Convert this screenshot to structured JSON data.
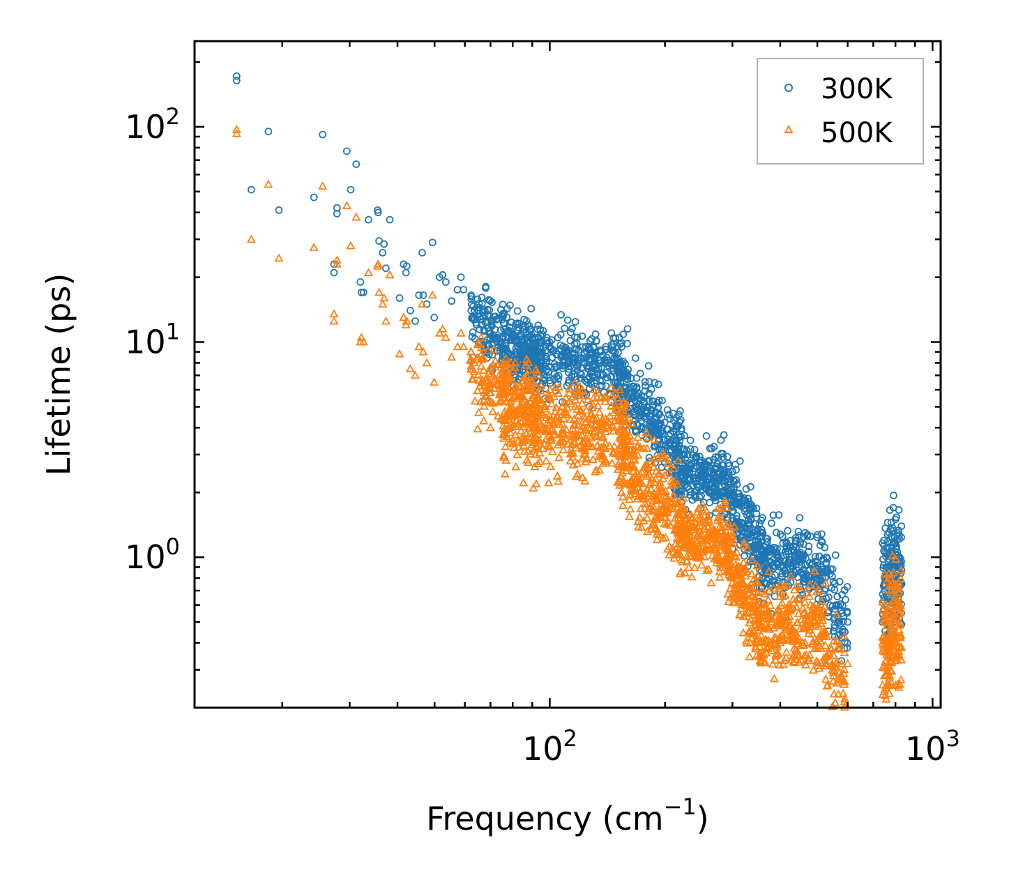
{
  "chart_data": {
    "type": "scatter",
    "title": "",
    "xlabel": "Frequency (cm",
    "xlabel_sup": "−1",
    "xlabel_suffix": ")",
    "ylabel": "Lifetime (ps)",
    "xscale": "log",
    "yscale": "log",
    "xlim": [
      11.8,
      1050
    ],
    "ylim": [
      0.2,
      250
    ],
    "x_ticks": [
      {
        "value": 100,
        "base": "10",
        "exp": "2"
      },
      {
        "value": 1000,
        "base": "10",
        "exp": "3"
      }
    ],
    "y_ticks": [
      {
        "value": 1,
        "base": "10",
        "exp": "0"
      },
      {
        "value": 10,
        "base": "10",
        "exp": "1"
      },
      {
        "value": 100,
        "base": "10",
        "exp": "2"
      }
    ],
    "legend_position": "top-right",
    "series": [
      {
        "name": "300K",
        "color": "#1f77b4",
        "marker": "circle",
        "points": [
          [
            15.2,
            164
          ],
          [
            15.2,
            172
          ],
          [
            16.6,
            51
          ],
          [
            18.4,
            95
          ],
          [
            19.6,
            41
          ],
          [
            24.2,
            47
          ],
          [
            25.5,
            92
          ],
          [
            27.3,
            23
          ],
          [
            27.3,
            21
          ],
          [
            27.8,
            42
          ],
          [
            27.8,
            39.5
          ],
          [
            29.5,
            77
          ],
          [
            30.2,
            51
          ],
          [
            31.2,
            67
          ],
          [
            32,
            19
          ],
          [
            32.2,
            17
          ],
          [
            32.6,
            17
          ],
          [
            33.6,
            37
          ],
          [
            35.5,
            41
          ],
          [
            35.6,
            40
          ],
          [
            35.8,
            29.5
          ],
          [
            36.6,
            26
          ],
          [
            36.9,
            28.5
          ],
          [
            37.3,
            22
          ],
          [
            38.2,
            37
          ],
          [
            40.5,
            16
          ],
          [
            41.5,
            23
          ],
          [
            42.1,
            21
          ],
          [
            42.3,
            22.5
          ],
          [
            43.2,
            14
          ],
          [
            44.5,
            12.5
          ],
          [
            45.5,
            16.5
          ],
          [
            46.4,
            26
          ],
          [
            46.7,
            16.5
          ],
          [
            47.7,
            15
          ],
          [
            49.4,
            29
          ],
          [
            49.9,
            13
          ],
          [
            51.5,
            20
          ],
          [
            52.5,
            20.5
          ],
          [
            53.5,
            19
          ],
          [
            55.4,
            15.5
          ],
          [
            57.4,
            17.5
          ],
          [
            58.6,
            20
          ],
          [
            59.5,
            17.5
          ],
          [
            62.3,
            16.5
          ],
          [
            64.7,
            15.8
          ],
          [
            66.3,
            12
          ],
          [
            70,
            11
          ],
          [
            73,
            10.5
          ],
          [
            80,
            10.5
          ],
          [
            95,
            10
          ],
          [
            100,
            9.5
          ],
          [
            105,
            10.5
          ],
          [
            110,
            9
          ],
          [
            118,
            10.5
          ],
          [
            130,
            9.5
          ],
          [
            140,
            9.5
          ],
          [
            148,
            9
          ],
          [
            160,
            7
          ],
          [
            170,
            5.8
          ],
          [
            176,
            5.3
          ],
          [
            180,
            5
          ],
          [
            190,
            4
          ],
          [
            198,
            3.5
          ],
          [
            205,
            3.3
          ],
          [
            240,
            2.9
          ],
          [
            265,
            3.2
          ],
          [
            280,
            3.5
          ],
          [
            285,
            3.7
          ],
          [
            300,
            2.5
          ],
          [
            315,
            1.75
          ],
          [
            330,
            1.6
          ],
          [
            345,
            1.2
          ],
          [
            370,
            1.05
          ],
          [
            390,
            1.05
          ],
          [
            420,
            0.95
          ],
          [
            460,
            1.15
          ],
          [
            480,
            1.25
          ],
          [
            500,
            0.95
          ],
          [
            520,
            0.85
          ],
          [
            545,
            0.72
          ],
          [
            560,
            0.6
          ],
          [
            580,
            0.55
          ],
          [
            600,
            0.5
          ],
          [
            590,
            0.45
          ],
          [
            740,
            0.5
          ],
          [
            750,
            0.8
          ],
          [
            760,
            1.05
          ],
          [
            770,
            1.3
          ],
          [
            780,
            1.45
          ],
          [
            790,
            1.7
          ],
          [
            800,
            1.5
          ],
          [
            810,
            1.3
          ],
          [
            820,
            1.0
          ],
          [
            830,
            0.75
          ]
        ],
        "clouds": [
          {
            "x": [
              62,
              95
            ],
            "ylog_center": [
              12.5,
              8.5
            ],
            "spread": 0.09,
            "n": 220
          },
          {
            "x": [
              75,
              160
            ],
            "ylog_center": [
              8.6,
              7.8
            ],
            "spread": 0.08,
            "n": 420
          },
          {
            "x": [
              150,
              225
            ],
            "ylog_center": [
              6.5,
              2.8
            ],
            "spread": 0.09,
            "n": 260
          },
          {
            "x": [
              210,
              295
            ],
            "ylog_center": [
              2.5,
              2.2
            ],
            "spread": 0.07,
            "n": 240
          },
          {
            "x": [
              290,
              360
            ],
            "ylog_center": [
              2.0,
              1.05
            ],
            "spread": 0.09,
            "n": 180
          },
          {
            "x": [
              350,
              530
            ],
            "ylog_center": [
              0.95,
              0.9
            ],
            "spread": 0.08,
            "n": 260
          },
          {
            "x": [
              520,
              600
            ],
            "ylog_center": [
              0.75,
              0.48
            ],
            "spread": 0.1,
            "n": 60
          },
          {
            "x": [
              740,
              830
            ],
            "ylog_center": [
              0.75,
              0.85
            ],
            "spread": 0.14,
            "n": 160
          }
        ]
      },
      {
        "name": "500K",
        "color": "#ff7f0e",
        "marker": "triangle",
        "points": [
          [
            15.2,
            97
          ],
          [
            15.2,
            93
          ],
          [
            16.6,
            30
          ],
          [
            18.4,
            54
          ],
          [
            19.6,
            24.5
          ],
          [
            24.2,
            27.5
          ],
          [
            25.5,
            53
          ],
          [
            27.3,
            13.5
          ],
          [
            27.3,
            12.5
          ],
          [
            27.8,
            24
          ],
          [
            27.8,
            23
          ],
          [
            29.5,
            43
          ],
          [
            30.2,
            28
          ],
          [
            31.2,
            38
          ],
          [
            32,
            10
          ],
          [
            32.2,
            10.5
          ],
          [
            32.6,
            10
          ],
          [
            33.6,
            21
          ],
          [
            35.5,
            22.5
          ],
          [
            35.6,
            23
          ],
          [
            35.8,
            17
          ],
          [
            36.6,
            15
          ],
          [
            36.9,
            16
          ],
          [
            37.3,
            12.5
          ],
          [
            38.2,
            20.5
          ],
          [
            40.5,
            8.8
          ],
          [
            41.5,
            13
          ],
          [
            42.1,
            12
          ],
          [
            42.3,
            12.5
          ],
          [
            43.2,
            7.5
          ],
          [
            44.5,
            7
          ],
          [
            45.5,
            9.5
          ],
          [
            46.4,
            15
          ],
          [
            46.7,
            9
          ],
          [
            47.7,
            8
          ],
          [
            49.4,
            16.5
          ],
          [
            49.9,
            6.5
          ],
          [
            51.5,
            11
          ],
          [
            52.5,
            11.5
          ],
          [
            53.5,
            10.5
          ],
          [
            55.4,
            8.5
          ],
          [
            57.4,
            9.5
          ],
          [
            58.6,
            11
          ],
          [
            59.5,
            9.5
          ],
          [
            62.3,
            9
          ],
          [
            64.7,
            8.5
          ],
          [
            66.3,
            6.5
          ],
          [
            70,
            4
          ],
          [
            80,
            3.5
          ],
          [
            90,
            6.5
          ],
          [
            100,
            6
          ],
          [
            110,
            5.5
          ],
          [
            120,
            6.2
          ],
          [
            130,
            6
          ],
          [
            140,
            5.5
          ],
          [
            150,
            4.5
          ],
          [
            180,
            2.5
          ],
          [
            200,
            1.6
          ],
          [
            230,
            1.4
          ],
          [
            260,
            1.5
          ],
          [
            280,
            1.5
          ],
          [
            290,
            1.7
          ],
          [
            300,
            0.9
          ],
          [
            320,
            0.75
          ],
          [
            340,
            0.45
          ],
          [
            360,
            0.35
          ],
          [
            380,
            0.5
          ],
          [
            400,
            0.4
          ],
          [
            430,
            0.45
          ],
          [
            460,
            0.55
          ],
          [
            480,
            0.6
          ],
          [
            500,
            0.55
          ],
          [
            520,
            0.45
          ],
          [
            540,
            0.38
          ],
          [
            560,
            0.32
          ],
          [
            575,
            0.28
          ],
          [
            590,
            0.22
          ],
          [
            600,
            0.32
          ],
          [
            740,
            0.4
          ],
          [
            760,
            0.55
          ],
          [
            780,
            0.7
          ],
          [
            790,
            0.85
          ],
          [
            800,
            0.75
          ],
          [
            810,
            0.6
          ],
          [
            820,
            0.5
          ],
          [
            830,
            0.38
          ]
        ],
        "clouds": [
          {
            "x": [
              62,
              95
            ],
            "ylog_center": [
              7.5,
              4.8
            ],
            "spread": 0.09,
            "n": 220
          },
          {
            "x": [
              75,
              160
            ],
            "ylog_center": [
              4.2,
              3.8
            ],
            "spread": 0.1,
            "n": 420
          },
          {
            "x": [
              150,
              225
            ],
            "ylog_center": [
              3.0,
              1.45
            ],
            "spread": 0.1,
            "n": 260
          },
          {
            "x": [
              210,
              295
            ],
            "ylog_center": [
              1.3,
              1.1
            ],
            "spread": 0.08,
            "n": 240
          },
          {
            "x": [
              290,
              360
            ],
            "ylog_center": [
              0.95,
              0.5
            ],
            "spread": 0.1,
            "n": 180
          },
          {
            "x": [
              350,
              530
            ],
            "ylog_center": [
              0.45,
              0.5
            ],
            "spread": 0.1,
            "n": 260
          },
          {
            "x": [
              520,
              600
            ],
            "ylog_center": [
              0.38,
              0.25
            ],
            "spread": 0.1,
            "n": 60
          },
          {
            "x": [
              740,
              830
            ],
            "ylog_center": [
              0.38,
              0.48
            ],
            "spread": 0.14,
            "n": 160
          }
        ]
      }
    ]
  }
}
